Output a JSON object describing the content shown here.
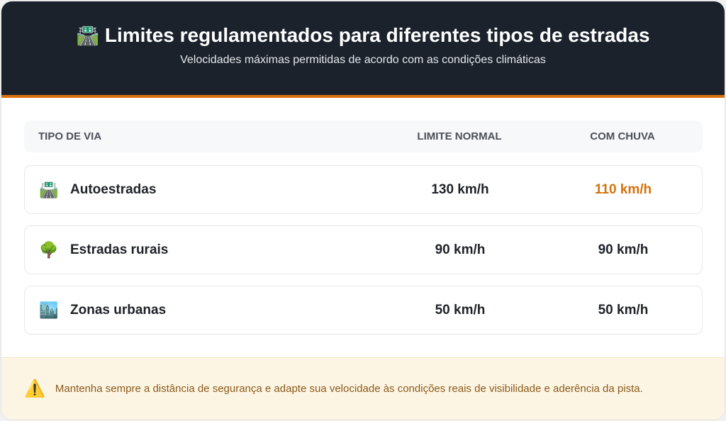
{
  "header": {
    "icon": "motorway-icon",
    "title": "Limites regulamentados para diferentes tipos de estradas",
    "subtitle": "Velocidades máximas permitidas de acordo com as condições climáticas"
  },
  "table": {
    "columns": [
      "TIPO DE VIA",
      "LIMITE NORMAL",
      "COM CHUVA"
    ],
    "rows": [
      {
        "icon": "motorway-icon",
        "type": "Autoestradas",
        "normal": "130 km/h",
        "rain": "110 km/h"
      },
      {
        "icon": "tree-icon",
        "type": "Estradas rurais",
        "normal": "90 km/h",
        "rain": "90 km/h"
      },
      {
        "icon": "cityscape-icon",
        "type": "Zonas urbanas",
        "normal": "50 km/h",
        "rain": "50 km/h"
      }
    ]
  },
  "footer": {
    "icon": "warning-icon",
    "text": "Mantenha sempre a distância de segurança e adapte sua velocidade às condições reais de visibilidade e aderência da pista."
  },
  "colors": {
    "header_bg": "#1b222c",
    "accent": "#d9720b",
    "rain_highlight": "#d4720c",
    "footer_bg": "#fdf5e3"
  }
}
